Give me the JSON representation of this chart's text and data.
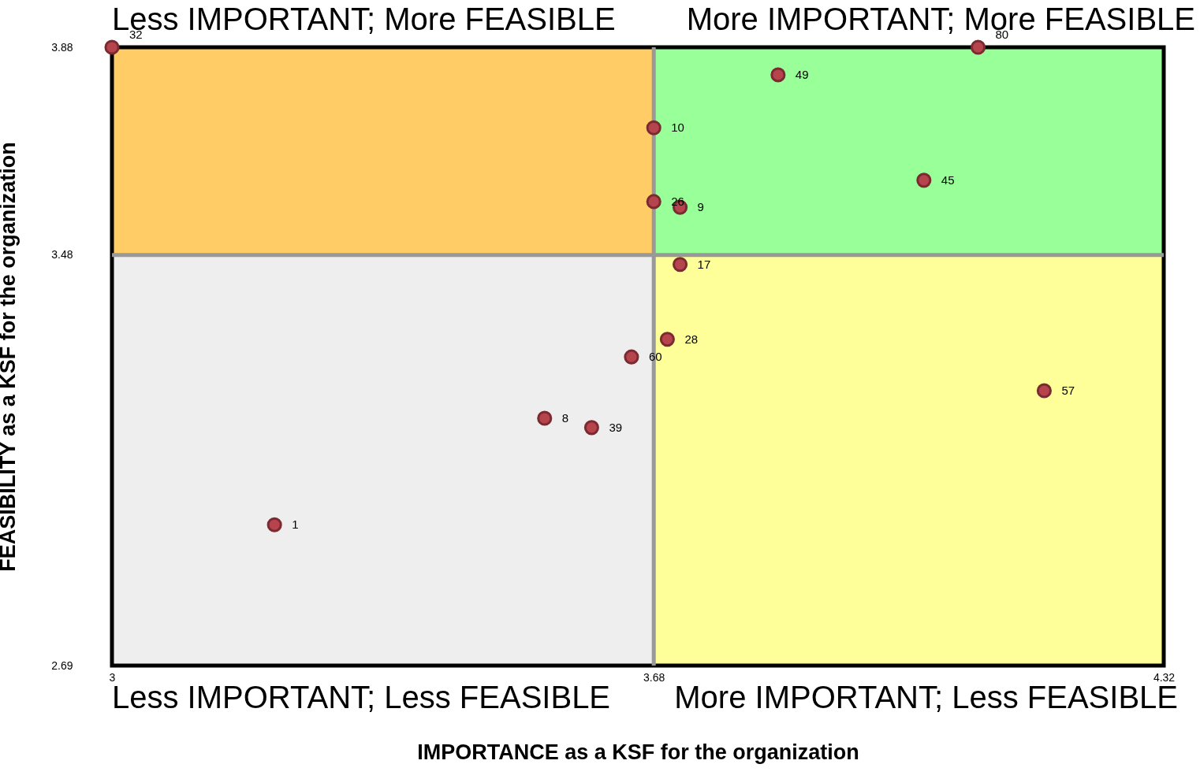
{
  "chart_data": {
    "type": "scatter",
    "xlabel": "IMPORTANCE as a KSF for the organization",
    "ylabel": "FEASIBILITY as a KSF for the organization",
    "x": [
      3.0,
      4.087,
      3.836,
      3.68,
      4.019,
      3.68,
      3.713,
      3.713,
      3.697,
      3.652,
      4.17,
      3.543,
      3.602,
      3.204
    ],
    "values": [
      3.88,
      3.88,
      3.827,
      3.725,
      3.624,
      3.583,
      3.572,
      3.462,
      3.318,
      3.284,
      3.219,
      3.166,
      3.148,
      2.961
    ],
    "color": "#b5444c",
    "marker": "circle",
    "xlim": [
      3,
      4.32
    ],
    "xticks": [
      3,
      3.68,
      4.32
    ],
    "ylim": [
      2.69,
      3.88
    ],
    "yticks": [
      2.69,
      3.48,
      3.88
    ],
    "grid": false,
    "ref_lines": [
      {
        "axis": "x",
        "value": 3.68,
        "color": "#999999"
      },
      {
        "axis": "y",
        "value": 3.48,
        "color": "#999999"
      }
    ],
    "annotations": [
      "Less IMPORTANT; More FEASIBLE",
      "More IMPORTANT; More FEASIBLE",
      "Less IMPORTANT; Less FEASIBLE",
      "More IMPORTANT; Less FEASIBLE",
      {
        "text": "32",
        "x": 3.0,
        "y": 3.88
      },
      {
        "text": "80",
        "x": 4.087,
        "y": 3.88
      },
      {
        "text": "49",
        "x": 3.836,
        "y": 3.827
      },
      {
        "text": "10",
        "x": 3.68,
        "y": 3.725
      },
      {
        "text": "45",
        "x": 4.019,
        "y": 3.624
      },
      {
        "text": "26",
        "x": 3.68,
        "y": 3.583
      },
      {
        "text": "9",
        "x": 3.713,
        "y": 3.572
      },
      {
        "text": "17",
        "x": 3.713,
        "y": 3.462
      },
      {
        "text": "28",
        "x": 3.697,
        "y": 3.318
      },
      {
        "text": "60",
        "x": 3.652,
        "y": 3.284
      },
      {
        "text": "57",
        "x": 4.17,
        "y": 3.219
      },
      {
        "text": "8",
        "x": 3.543,
        "y": 3.166
      },
      {
        "text": "39",
        "x": 3.602,
        "y": 3.148
      },
      {
        "text": "1",
        "x": 3.204,
        "y": 2.961
      }
    ]
  }
}
